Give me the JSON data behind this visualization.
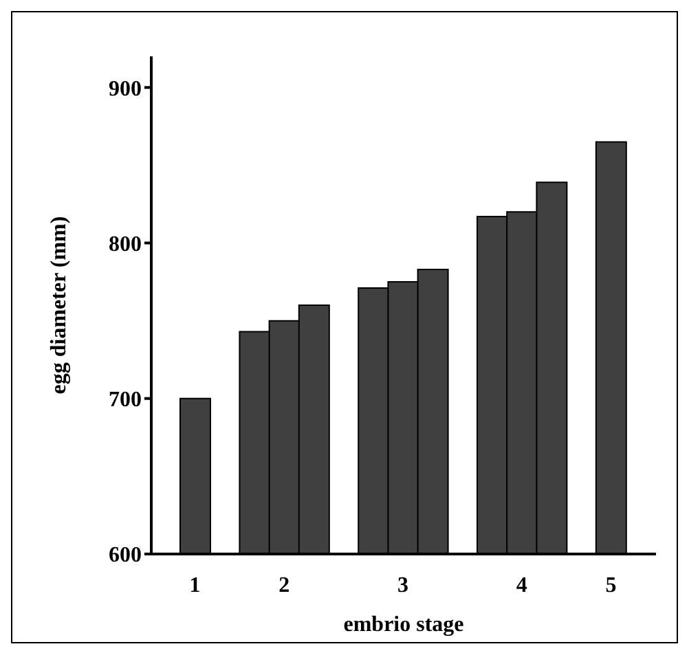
{
  "chart_data": {
    "type": "bar",
    "xlabel": "embrio stage",
    "ylabel": "egg diameter (mm)",
    "categories": [
      "1",
      null,
      null,
      "2",
      null,
      null,
      null,
      "3",
      null,
      null,
      null,
      "4",
      null,
      null,
      "5"
    ],
    "values": [
      700,
      null,
      743,
      750,
      760,
      null,
      771,
      775,
      783,
      null,
      817,
      820,
      839,
      null,
      865
    ],
    "color": "#404040",
    "ylim": [
      600,
      920
    ],
    "yticks": [
      600,
      700,
      800,
      900
    ],
    "grid": false
  }
}
